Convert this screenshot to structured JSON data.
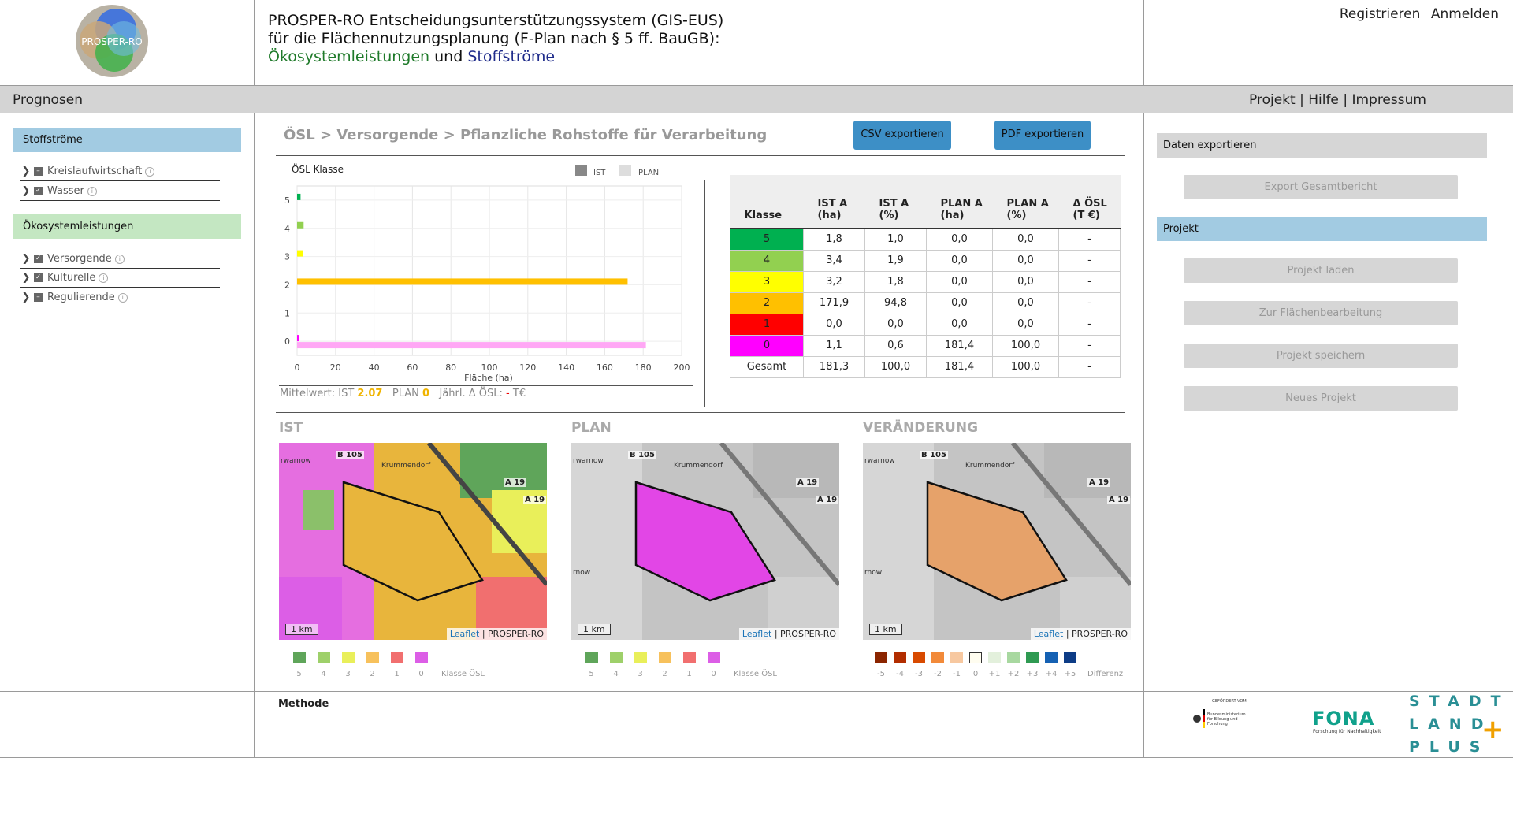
{
  "header": {
    "logo_text": "PROSPER-RO",
    "title_line1": "PROSPER-RO Entscheidungsunterstützungssystem (GIS-EUS)",
    "title_line2": "für die Flächennutzungsplanung (F-Plan nach § 5 ff. BauGB):",
    "title_green": "Ökosystemleistungen",
    "title_and": "und",
    "title_blue": "Stoffströme",
    "register": "Registrieren",
    "login": "Anmelden"
  },
  "nav": {
    "left_label": "Prognosen",
    "projekt": "Projekt",
    "hilfe": "Hilfe",
    "impressum": "Impressum",
    "sep": "|"
  },
  "sidebar": {
    "stoffstroeme": "Stoffströme",
    "stoff_items": [
      "Kreislaufwirtschaft",
      "Wasser"
    ],
    "oesl": "Ökosystemleistungen",
    "oesl_items": [
      "Versorgende",
      "Kulturelle",
      "Regulierende"
    ],
    "info_glyph": "i"
  },
  "main": {
    "breadcrumb": "ÖSL > Versorgende > Pflanzliche Rohstoffe für Verarbeitung",
    "csv_button": "CSV exportieren",
    "pdf_button": "PDF exportieren",
    "footer": {
      "label": "Mittelwert:",
      "ist_label": "IST",
      "ist_value": "2.07",
      "plan_label": "PLAN",
      "plan_value": "0",
      "delta_label": "Jährl. Δ ÖSL:",
      "delta_value": "-",
      "unit": "T€"
    }
  },
  "chart_data": {
    "type": "bar",
    "orientation": "horizontal",
    "title": "ÖSL Klasse",
    "xlabel": "Fläche (ha)",
    "ylabel": "",
    "categories": [
      "5",
      "4",
      "3",
      "2",
      "1",
      "0"
    ],
    "series": [
      {
        "name": "IST",
        "values": [
          1.8,
          3.4,
          3.2,
          171.9,
          0.0,
          1.1
        ],
        "colors": [
          "#00b050",
          "#92d050",
          "#ffff00",
          "#ffc000",
          "#ff0000",
          "#ff00ff"
        ]
      },
      {
        "name": "PLAN",
        "values": [
          0.0,
          0.0,
          0.0,
          0.0,
          0.0,
          181.4
        ],
        "color": "#ffa7f5"
      }
    ],
    "xlim": [
      0,
      200
    ],
    "xticks": [
      0,
      20,
      40,
      60,
      80,
      100,
      120,
      140,
      160,
      180,
      200
    ],
    "legend_colors": {
      "IST": "#888888",
      "PLAN": "#dddddd"
    },
    "legend_position": "top-right",
    "grid": true
  },
  "table": {
    "headers": [
      "Klasse",
      "IST A (ha)",
      "IST A (%)",
      "PLAN A (ha)",
      "PLAN A (%)",
      "Δ ÖSL (T €)"
    ],
    "rows": [
      {
        "klasse": "5",
        "color": "#00b050",
        "cells": [
          "1,8",
          "1,0",
          "0,0",
          "0,0",
          "-"
        ]
      },
      {
        "klasse": "4",
        "color": "#92d050",
        "cells": [
          "3,4",
          "1,9",
          "0,0",
          "0,0",
          "-"
        ]
      },
      {
        "klasse": "3",
        "color": "#ffff00",
        "cells": [
          "3,2",
          "1,8",
          "0,0",
          "0,0",
          "-"
        ]
      },
      {
        "klasse": "2",
        "color": "#ffc000",
        "cells": [
          "171,9",
          "94,8",
          "0,0",
          "0,0",
          "-"
        ]
      },
      {
        "klasse": "1",
        "color": "#ff0000",
        "cells": [
          "0,0",
          "0,0",
          "0,0",
          "0,0",
          "-"
        ]
      },
      {
        "klasse": "0",
        "color": "#ff00ff",
        "cells": [
          "1,1",
          "0,6",
          "181,4",
          "100,0",
          "-"
        ]
      },
      {
        "klasse": "Gesamt",
        "color": "#ffffff",
        "cells": [
          "181,3",
          "100,0",
          "181,4",
          "100,0",
          "-"
        ]
      }
    ]
  },
  "maps": {
    "ist_title": "IST",
    "plan_title": "PLAN",
    "change_title": "VERÄNDERUNG",
    "scale": "1 km",
    "attr_leaflet": "Leaflet",
    "attr_sep": "|",
    "attr_source": "PROSPER-RO",
    "road_b105": "B 105",
    "road_a19": "A 19",
    "town": "Krummendorf",
    "town2": "rwarnow",
    "town3": "rnow",
    "ist_fill": "#e8b53c",
    "plan_fill": "#e246e6",
    "change_fill": "#e6a26a"
  },
  "legend_oesl": {
    "colors": [
      "#5fa55a",
      "#9ed06a",
      "#e9ef5a",
      "#f7c15c",
      "#f16f6f",
      "#dc5ee6"
    ],
    "labels": [
      "5",
      "4",
      "3",
      "2",
      "1",
      "0"
    ],
    "title": "Klasse ÖSL"
  },
  "legend_diff": {
    "colors": [
      "#8b2500",
      "#b22d00",
      "#d84a00",
      "#f28a3a",
      "#f7c8a0",
      "#fffdf0",
      "#e3f0dc",
      "#a8d8a0",
      "#2f9a52",
      "#1561b3",
      "#0d3c86"
    ],
    "labels": [
      "-5",
      "-4",
      "-3",
      "-2",
      "-1",
      "0",
      "+1",
      "+2",
      "+3",
      "+4",
      "+5"
    ],
    "title": "Differenz"
  },
  "right_panel": {
    "export_head": "Daten exportieren",
    "export_button": "Export Gesamtbericht",
    "projekt_head": "Projekt",
    "buttons": [
      "Projekt laden",
      "Zur Flächenbearbeitung",
      "Projekt speichern",
      "Neues Projekt"
    ]
  },
  "footer": {
    "methode": "Methode",
    "bmbf_small": "GEFÖRDERT VOM",
    "bmbf_text": "Bundesministerium für Bildung und Forschung",
    "fona": "FONA",
    "fona_sub": "Forschung für Nachhaltigkeit",
    "stadt": "STADT",
    "land": "LAND",
    "plus": "PLUS",
    "plus_sign": "+"
  }
}
